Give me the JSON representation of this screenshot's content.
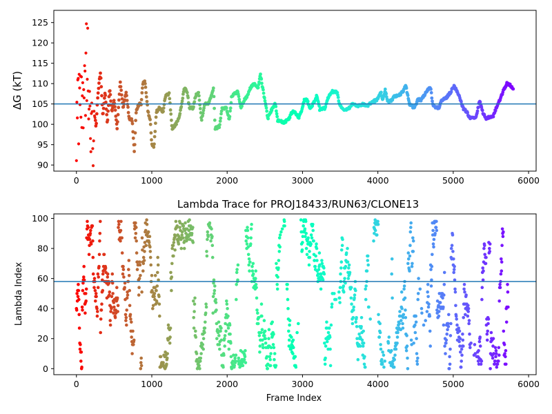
{
  "chart_data": [
    {
      "type": "scatter",
      "title": "",
      "xlabel": "",
      "ylabel": "ΔG (kT)",
      "xlim": [
        -300,
        6100
      ],
      "ylim": [
        88.5,
        128
      ],
      "x_ticks": [
        0,
        1000,
        2000,
        3000,
        4000,
        5000,
        6000
      ],
      "y_ticks": [
        90,
        95,
        100,
        105,
        110,
        115,
        120,
        125
      ],
      "reference_line": 105,
      "reference_color": "#1f77b4",
      "colormap": "rainbow (red at frame 0 to violet at last frame)",
      "frames": 5800,
      "grid": false,
      "trace_segments": [
        [
          0,
          90
        ],
        [
          5,
          110
        ],
        [
          10,
          89.5
        ],
        [
          15,
          120
        ],
        [
          20,
          100
        ],
        [
          25,
          116
        ],
        [
          30,
          95
        ],
        [
          35,
          111
        ],
        [
          40,
          105
        ],
        [
          45,
          121
        ],
        [
          50,
          98
        ],
        [
          55,
          112
        ],
        [
          60,
          103
        ],
        [
          65,
          118
        ],
        [
          70,
          92
        ],
        [
          75,
          108
        ],
        [
          80,
          104
        ],
        [
          85,
          114
        ],
        [
          90,
          99
        ],
        [
          95,
          110
        ],
        [
          100,
          106
        ],
        [
          110,
          116
        ],
        [
          120,
          102
        ],
        [
          130,
          127
        ],
        [
          140,
          104
        ],
        [
          150,
          124
        ],
        [
          160,
          97
        ],
        [
          175,
          112
        ],
        [
          190,
          93
        ],
        [
          205,
          107
        ],
        [
          220,
          91.5
        ],
        [
          240,
          104
        ],
        [
          260,
          99
        ],
        [
          280,
          106
        ],
        [
          300,
          110
        ],
        [
          320,
          113
        ],
        [
          350,
          102
        ],
        [
          380,
          108
        ],
        [
          410,
          100
        ],
        [
          440,
          109
        ],
        [
          470,
          103
        ],
        [
          500,
          106
        ],
        [
          540,
          99
        ],
        [
          580,
          110.5
        ],
        [
          620,
          104
        ],
        [
          660,
          108
        ],
        [
          700,
          101.5
        ],
        [
          740,
          101
        ],
        [
          770,
          93
        ],
        [
          790,
          103
        ],
        [
          830,
          105
        ],
        [
          860,
          105
        ],
        [
          880,
          110
        ],
        [
          910,
          110.5
        ],
        [
          950,
          103
        ],
        [
          980,
          101
        ],
        [
          1000,
          95
        ],
        [
          1030,
          94.5
        ],
        [
          1060,
          103
        ],
        [
          1100,
          104
        ],
        [
          1150,
          103
        ],
        [
          1180,
          107
        ],
        [
          1230,
          107.5
        ],
        [
          1270,
          99
        ],
        [
          1320,
          100
        ],
        [
          1350,
          101
        ],
        [
          1390,
          104
        ],
        [
          1430,
          109
        ],
        [
          1470,
          108
        ],
        [
          1500,
          104
        ],
        [
          1550,
          104
        ],
        [
          1580,
          107
        ],
        [
          1620,
          108
        ],
        [
          1660,
          101
        ],
        [
          1700,
          105
        ],
        [
          1740,
          105
        ],
        [
          1770,
          106
        ],
        [
          1820,
          109
        ],
        [
          1840,
          99
        ],
        [
          1900,
          99.5
        ],
        [
          1930,
          104
        ],
        [
          1990,
          104
        ],
        [
          2030,
          101
        ],
        [
          2060,
          107
        ],
        [
          2140,
          108
        ],
        [
          2180,
          104
        ],
        [
          2230,
          106
        ],
        [
          2270,
          107
        ],
        [
          2310,
          109
        ],
        [
          2360,
          110
        ],
        [
          2410,
          109
        ],
        [
          2440,
          112.5
        ],
        [
          2470,
          109
        ],
        [
          2510,
          105
        ],
        [
          2540,
          101.5
        ],
        [
          2600,
          104
        ],
        [
          2640,
          105
        ],
        [
          2670,
          101
        ],
        [
          2750,
          100.5
        ],
        [
          2810,
          101
        ],
        [
          2860,
          103
        ],
        [
          2900,
          103
        ],
        [
          2950,
          101.5
        ],
        [
          3000,
          104
        ],
        [
          3020,
          106
        ],
        [
          3060,
          106
        ],
        [
          3100,
          104
        ],
        [
          3140,
          105
        ],
        [
          3190,
          107
        ],
        [
          3230,
          103.5
        ],
        [
          3300,
          104
        ],
        [
          3330,
          106
        ],
        [
          3380,
          108
        ],
        [
          3460,
          108
        ],
        [
          3490,
          105
        ],
        [
          3540,
          103.5
        ],
        [
          3620,
          104
        ],
        [
          3660,
          105
        ],
        [
          3740,
          104.5
        ],
        [
          3800,
          105
        ],
        [
          3870,
          104.5
        ],
        [
          3920,
          105.5
        ],
        [
          3990,
          106
        ],
        [
          4040,
          108
        ],
        [
          4060,
          106
        ],
        [
          4100,
          108.5
        ],
        [
          4130,
          105.5
        ],
        [
          4190,
          106
        ],
        [
          4220,
          107
        ],
        [
          4280,
          107
        ],
        [
          4330,
          108
        ],
        [
          4370,
          109.5
        ],
        [
          4420,
          105
        ],
        [
          4480,
          104
        ],
        [
          4530,
          106
        ],
        [
          4580,
          106
        ],
        [
          4640,
          108
        ],
        [
          4700,
          109
        ],
        [
          4730,
          104.5
        ],
        [
          4810,
          104
        ],
        [
          4850,
          106
        ],
        [
          4910,
          106.5
        ],
        [
          4970,
          108
        ],
        [
          5010,
          109.5
        ],
        [
          5080,
          107
        ],
        [
          5130,
          104
        ],
        [
          5180,
          103
        ],
        [
          5220,
          101.5
        ],
        [
          5300,
          101.5
        ],
        [
          5320,
          103
        ],
        [
          5350,
          106
        ],
        [
          5390,
          103
        ],
        [
          5430,
          101.5
        ],
        [
          5530,
          102
        ],
        [
          5570,
          104
        ],
        [
          5620,
          106
        ],
        [
          5660,
          108
        ],
        [
          5710,
          110
        ],
        [
          5760,
          109.5
        ],
        [
          5800,
          108.5
        ]
      ]
    },
    {
      "type": "scatter",
      "title": "Lambda Trace for PROJ18433/RUN63/CLONE13",
      "xlabel": "Frame Index",
      "ylabel": "Lambda Index",
      "xlim": [
        -300,
        6100
      ],
      "ylim": [
        -4,
        103
      ],
      "x_ticks": [
        0,
        1000,
        2000,
        3000,
        4000,
        5000,
        6000
      ],
      "y_ticks": [
        0,
        20,
        40,
        60,
        80,
        100
      ],
      "reference_line": 58,
      "reference_color": "#1f77b4",
      "colormap": "rainbow (red at frame 0 to violet at last frame)",
      "frames": 5800,
      "lambda_range": [
        0,
        99
      ],
      "grid": false
    }
  ]
}
